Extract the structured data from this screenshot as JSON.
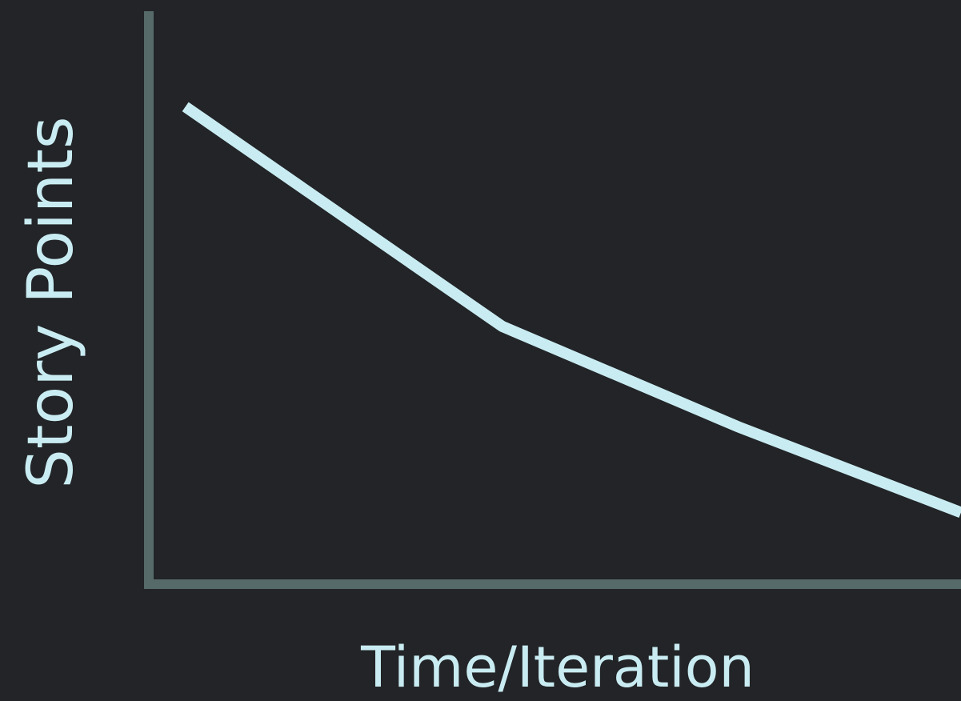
{
  "chart_data": {
    "type": "line",
    "xlabel": "Time/Iteration",
    "ylabel": "Story Points",
    "title": "",
    "grid": false,
    "legend": "none",
    "xlim": [
      0,
      4
    ],
    "ylim": [
      0,
      6
    ],
    "x": [
      0.18,
      1.74,
      2.9,
      4.0
    ],
    "series": [
      {
        "values": [
          5.0,
          2.7,
          1.65,
          0.75
        ]
      }
    ],
    "colors": {
      "background": "#222427",
      "axis": "#566a69",
      "line": "#c9ecf2",
      "text": "#c9ecf2"
    }
  }
}
